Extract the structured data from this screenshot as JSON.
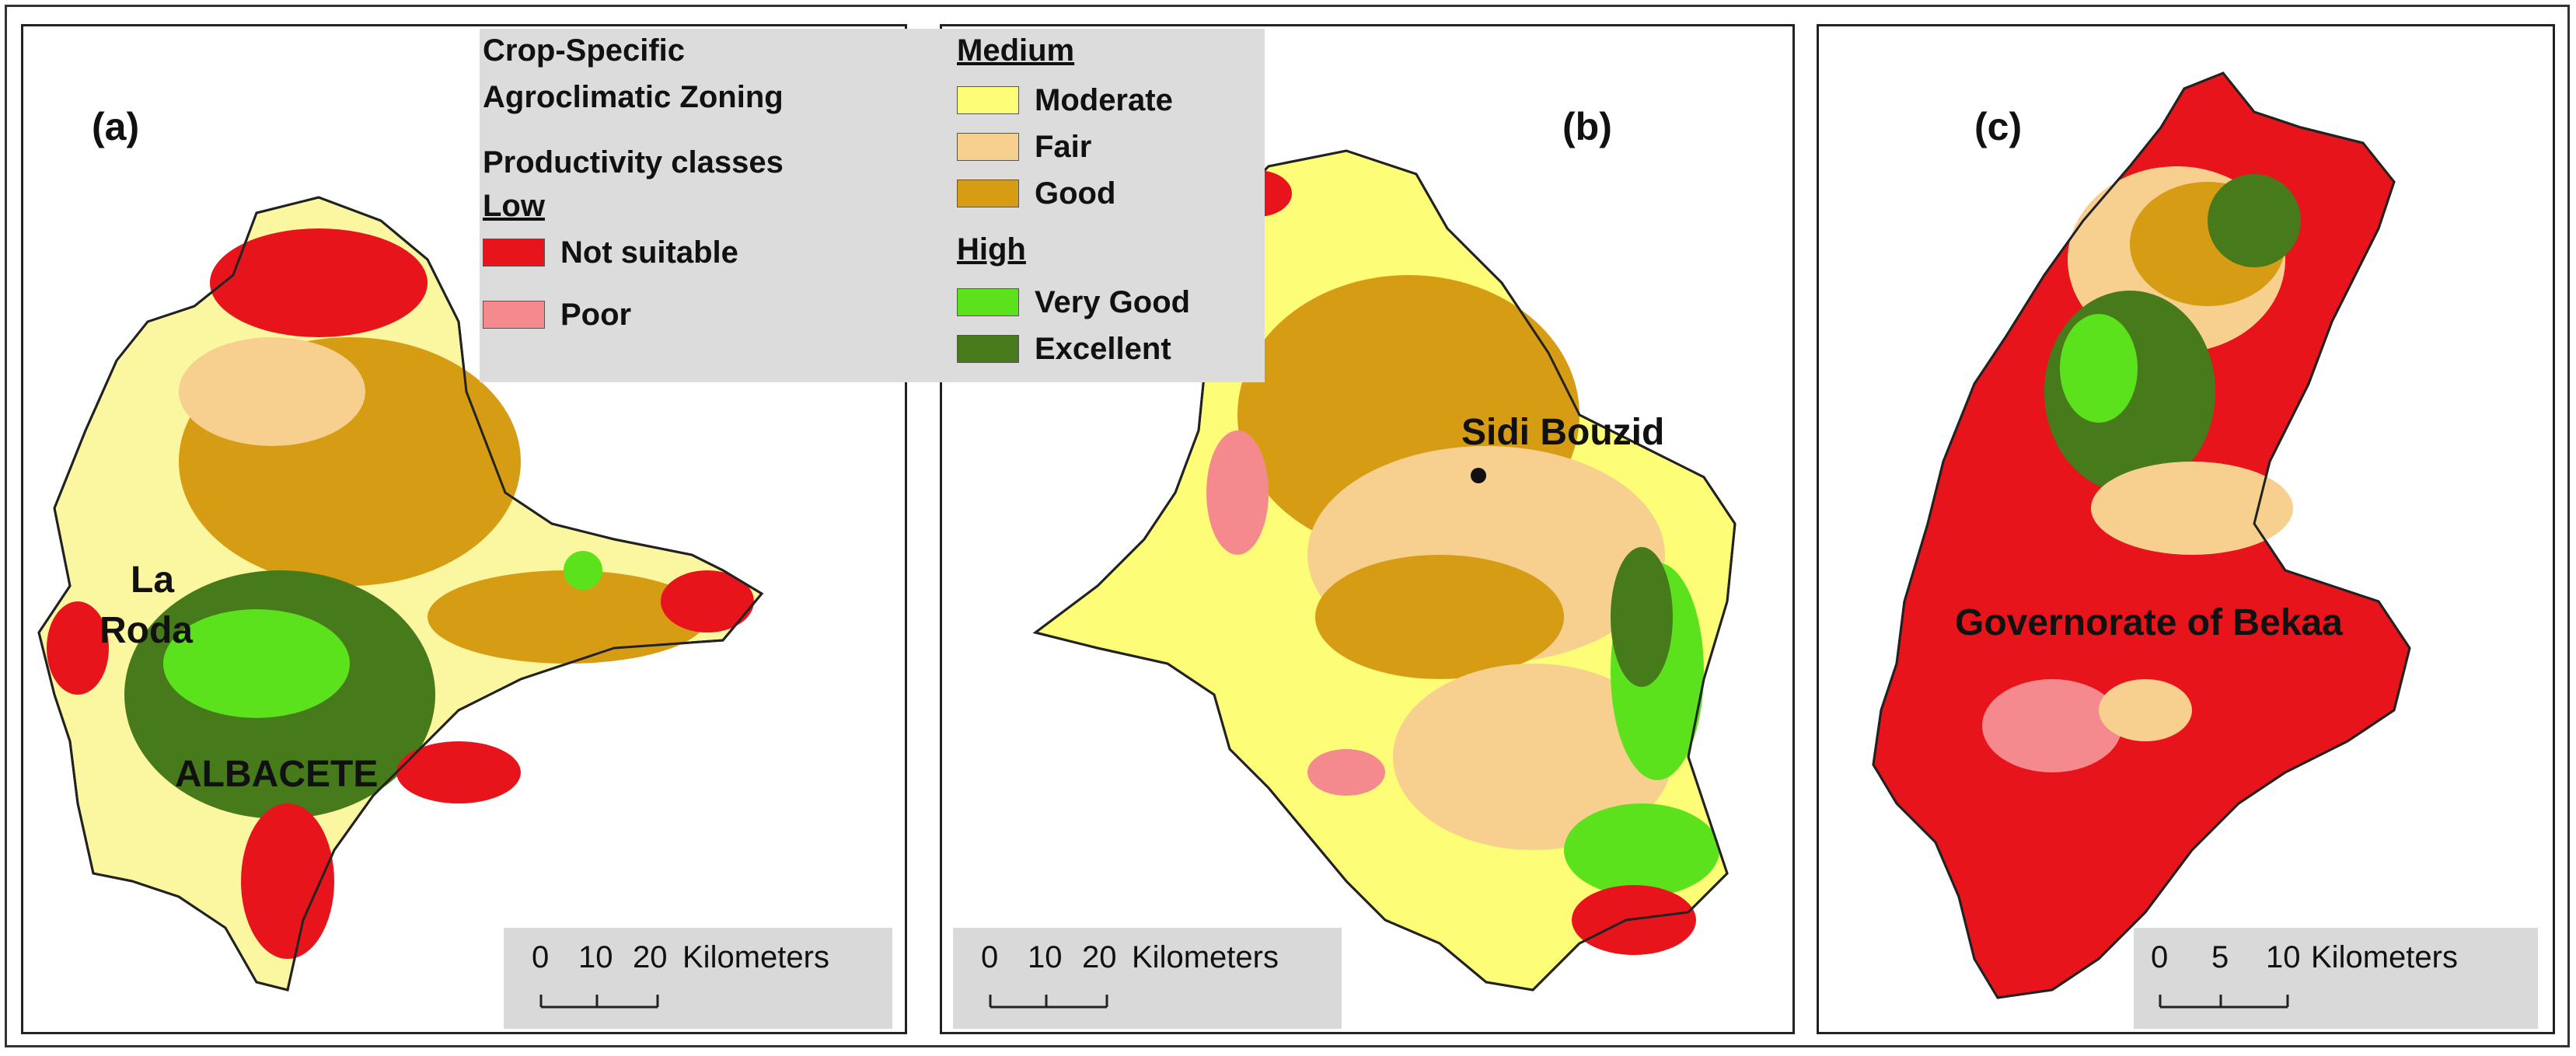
{
  "legend": {
    "title_line1": "Crop-Specific",
    "title_line2": "Agroclimatic Zoning",
    "subtitle": "Productivity classes",
    "groups": {
      "low": "Low",
      "medium": "Medium",
      "high": "High"
    },
    "classes": [
      {
        "label": "Not suitable",
        "color": "#e8141b"
      },
      {
        "label": "Poor",
        "color": "#f48a8e"
      },
      {
        "label": "Moderate",
        "color": "#fdfd78"
      },
      {
        "label": "Fair",
        "color": "#f7cf8e"
      },
      {
        "label": "Good",
        "color": "#d69c14"
      },
      {
        "label": "Very Good",
        "color": "#5ce21c"
      },
      {
        "label": "Excellent",
        "color": "#467a1b"
      }
    ]
  },
  "panels": {
    "a": {
      "label": "(a)",
      "places": [
        "La",
        "Roda",
        "ALBACETE"
      ],
      "scale": {
        "ticks": [
          "0",
          "10",
          "20"
        ],
        "unit": "Kilometers"
      }
    },
    "b": {
      "label": "(b)",
      "places": [
        "Sidi Bouzid"
      ],
      "scale": {
        "ticks": [
          "0",
          "10",
          "20"
        ],
        "unit": "Kilometers"
      }
    },
    "c": {
      "label": "(c)",
      "places": [
        "Governorate of Bekaa"
      ],
      "scale": {
        "ticks": [
          "0",
          "5",
          "10"
        ],
        "unit": "Kilometers"
      }
    }
  }
}
